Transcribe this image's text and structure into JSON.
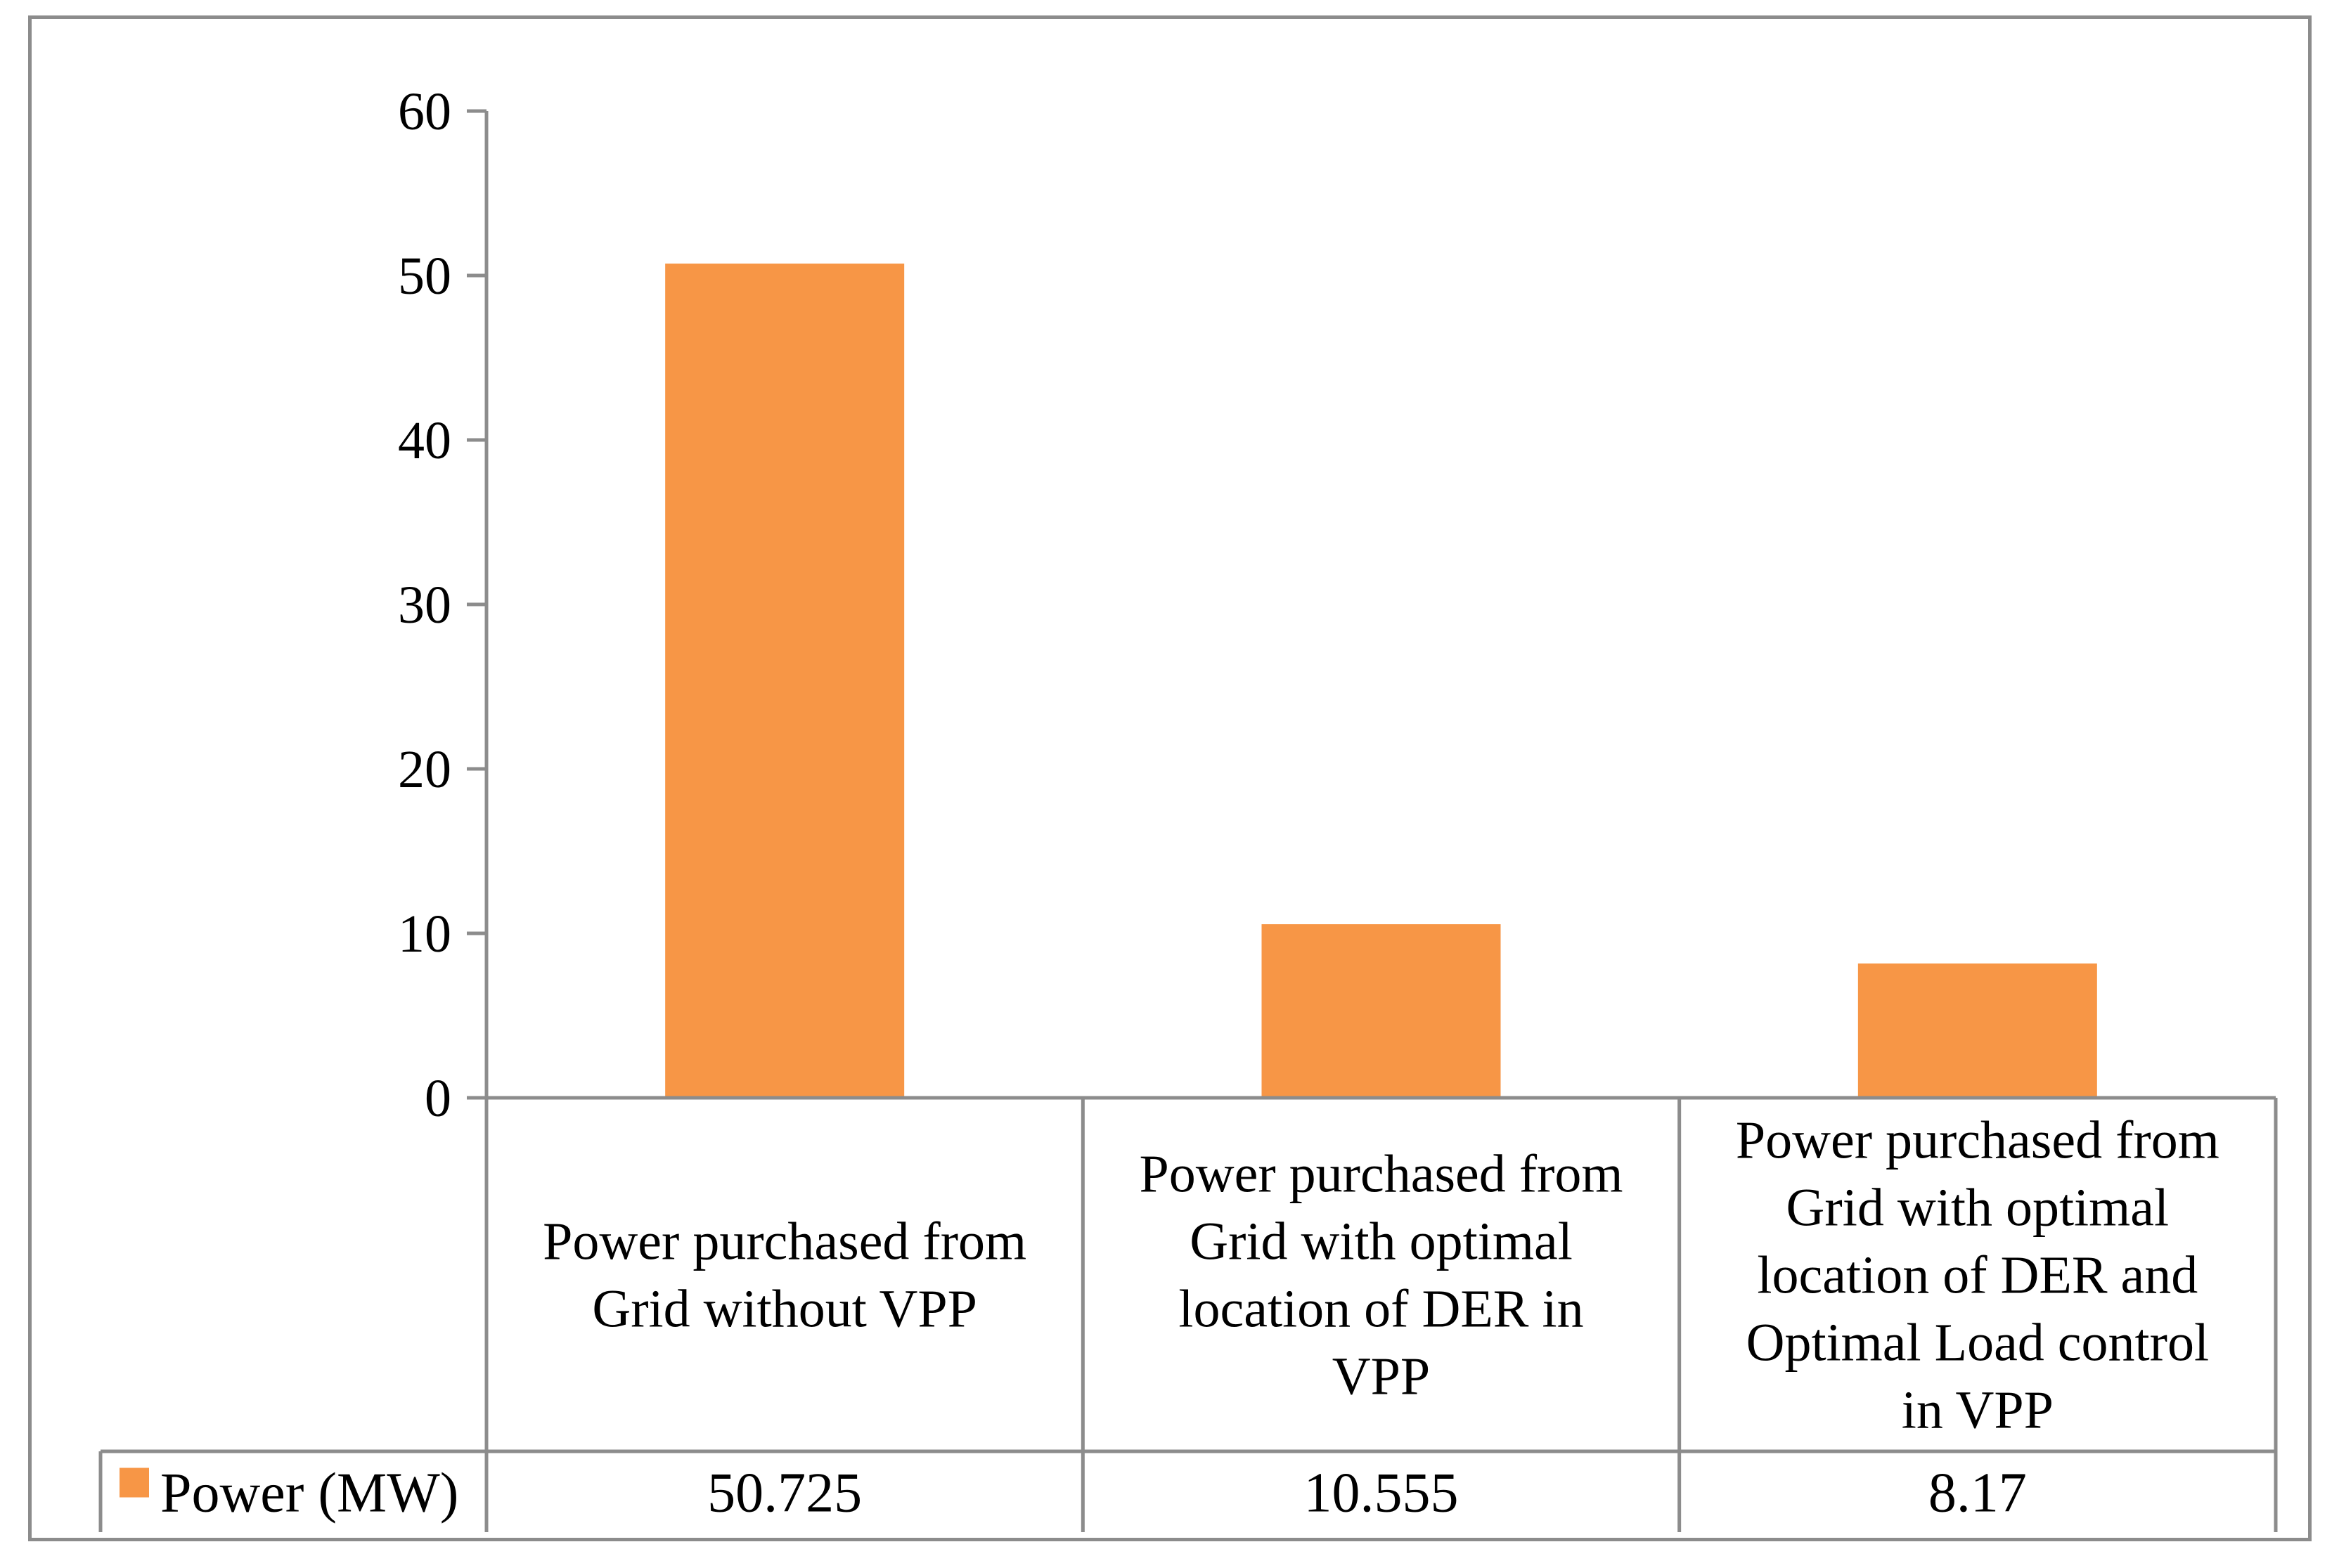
{
  "chart_data": {
    "type": "bar",
    "title": "",
    "xlabel": "",
    "ylabel": "",
    "ylim": [
      0,
      60
    ],
    "yticks": [
      0,
      10,
      20,
      30,
      40,
      50,
      60
    ],
    "categories": [
      [
        "Power purchased from",
        "Grid without VPP"
      ],
      [
        "Power purchased from",
        "Grid with optimal",
        "location of DER in",
        "VPP"
      ],
      [
        "Power purchased from",
        "Grid with optimal",
        "location of DER and",
        "Optimal Load control",
        "in VPP"
      ]
    ],
    "series": [
      {
        "name": "Power (MW)",
        "values": [
          50.725,
          10.555,
          8.17
        ],
        "labels": [
          "50.725",
          "10.555",
          "8.17"
        ],
        "color": "#f79646"
      }
    ],
    "data_table": true,
    "grid": false
  },
  "colors": {
    "axis": "#8c8c8c",
    "bar": "#f79646",
    "text": "#000000"
  }
}
